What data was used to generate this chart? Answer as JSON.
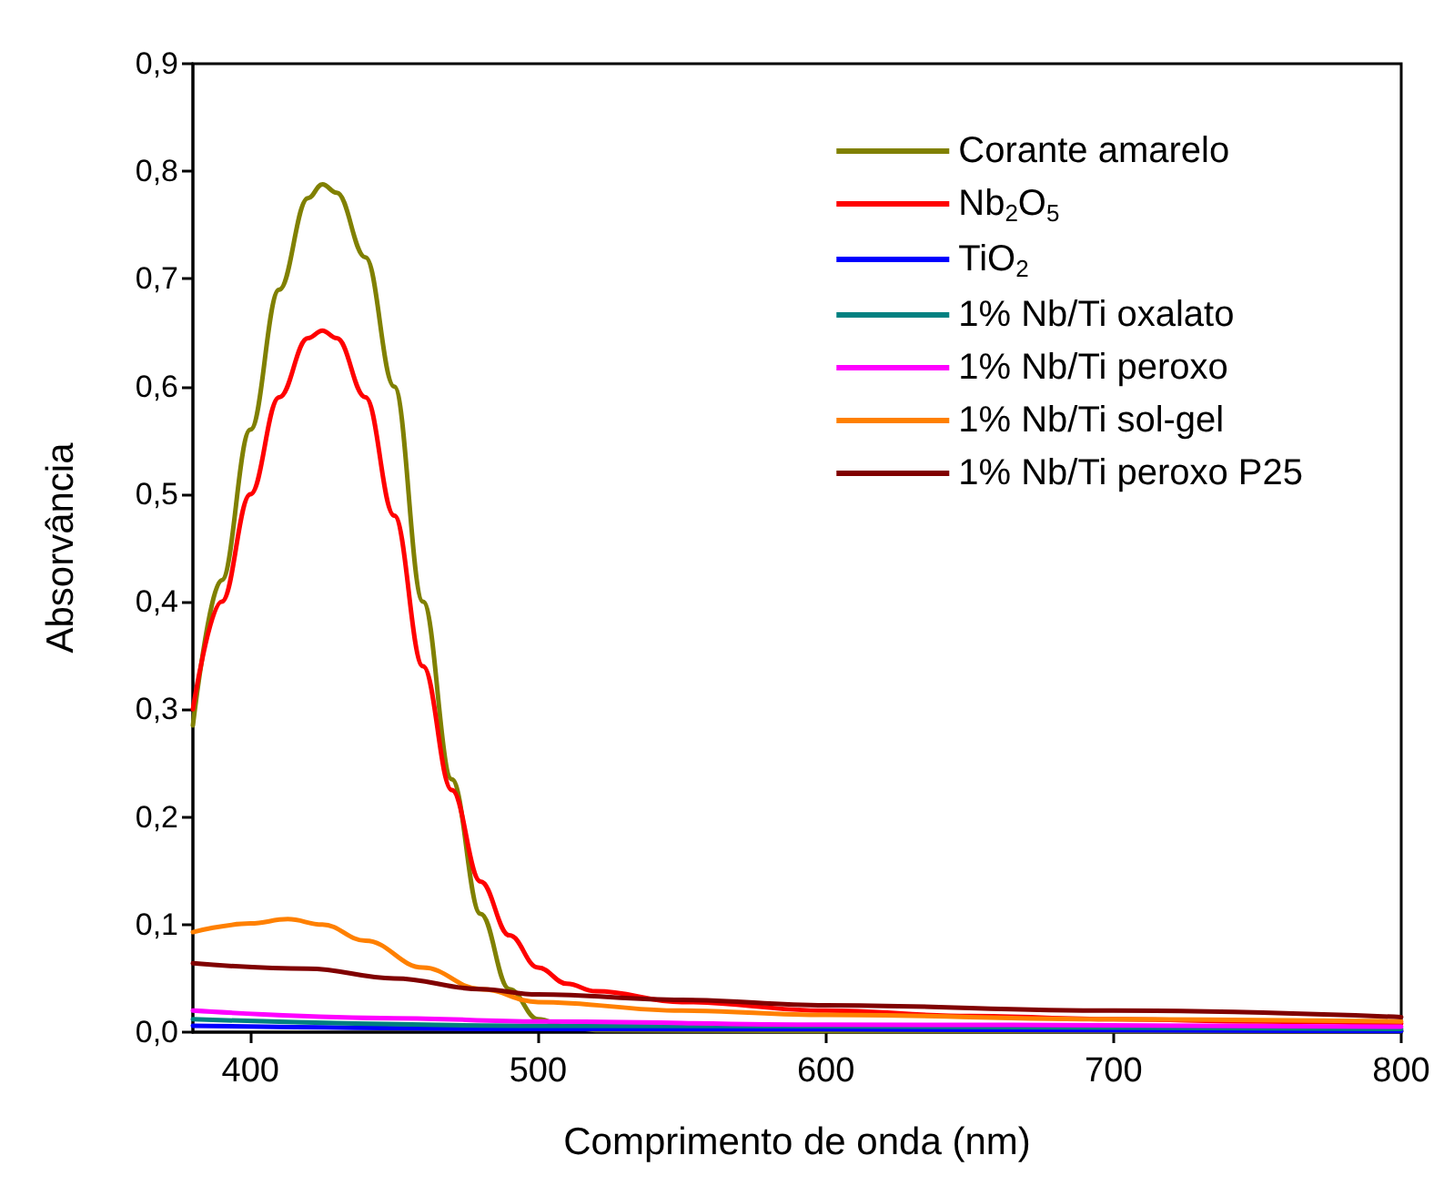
{
  "chart_data": {
    "type": "line",
    "xlabel": "Comprimento de onda (nm)",
    "ylabel": "Absorvância",
    "xlim": [
      380,
      800
    ],
    "xticks": [
      400,
      500,
      600,
      700,
      800
    ],
    "ylim": [
      0,
      0.9
    ],
    "yticks": [
      {
        "value": 0,
        "label": "0,0"
      },
      {
        "value": 0.1,
        "label": "0,1"
      },
      {
        "value": 0.2,
        "label": "0,2"
      },
      {
        "value": 0.3,
        "label": "0,3"
      },
      {
        "value": 0.4,
        "label": "0,4"
      },
      {
        "value": 0.5,
        "label": "0,5"
      },
      {
        "value": 0.6,
        "label": "0,6"
      },
      {
        "value": 0.7,
        "label": "0,7"
      },
      {
        "value": 0.8,
        "label": "0,8"
      },
      {
        "value": 0.9,
        "label": "0,9"
      }
    ],
    "grid": false,
    "legend": "top right",
    "marker": "none",
    "line_style": "solid",
    "series": [
      {
        "name": "Corante amarelo",
        "color": "#808000",
        "x": [
          380,
          390,
          400,
          410,
          420,
          425,
          430,
          440,
          450,
          460,
          470,
          480,
          490,
          500,
          510,
          520,
          600,
          700,
          800
        ],
        "values": [
          0.285,
          0.42,
          0.56,
          0.69,
          0.775,
          0.788,
          0.78,
          0.72,
          0.6,
          0.4,
          0.235,
          0.11,
          0.04,
          0.012,
          0.005,
          0.002,
          0.001,
          0.001,
          0.001
        ]
      },
      {
        "name": "Nb$_{2}$O$_{5}$",
        "color": "#ff0000",
        "x": [
          380,
          390,
          400,
          410,
          420,
          425,
          430,
          440,
          450,
          460,
          470,
          480,
          490,
          500,
          510,
          520,
          550,
          600,
          650,
          700,
          750,
          800
        ],
        "values": [
          0.3,
          0.4,
          0.5,
          0.59,
          0.645,
          0.652,
          0.645,
          0.59,
          0.48,
          0.34,
          0.225,
          0.14,
          0.09,
          0.06,
          0.045,
          0.038,
          0.028,
          0.02,
          0.015,
          0.012,
          0.01,
          0.008
        ]
      },
      {
        "name": "TiO$_{2}$",
        "color": "#0000ff",
        "x": [
          380,
          500,
          800
        ],
        "values": [
          0.006,
          0.003,
          0.001
        ]
      },
      {
        "name": "1% Nb/Ti oxalato",
        "color": "#008080",
        "x": [
          380,
          500,
          800
        ],
        "values": [
          0.012,
          0.006,
          0.003
        ]
      },
      {
        "name": "1% Nb/Ti peroxo",
        "color": "#ff00ff",
        "x": [
          380,
          450,
          500,
          600,
          800
        ],
        "values": [
          0.02,
          0.013,
          0.01,
          0.007,
          0.005
        ]
      },
      {
        "name": "1% Nb/Ti sol-gel",
        "color": "#ff8000",
        "x": [
          380,
          400,
          413,
          425,
          440,
          460,
          480,
          500,
          550,
          600,
          700,
          800
        ],
        "values": [
          0.093,
          0.101,
          0.105,
          0.1,
          0.085,
          0.06,
          0.04,
          0.028,
          0.02,
          0.016,
          0.012,
          0.01
        ]
      },
      {
        "name": "1% Nb/Ti peroxo P25",
        "color": "#800000",
        "x": [
          380,
          420,
          450,
          480,
          500,
          550,
          600,
          700,
          800
        ],
        "values": [
          0.064,
          0.059,
          0.05,
          0.04,
          0.035,
          0.03,
          0.025,
          0.02,
          0.014
        ]
      }
    ]
  }
}
